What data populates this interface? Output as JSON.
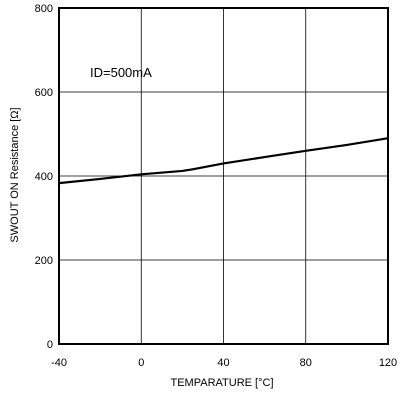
{
  "chart_data": {
    "type": "line",
    "annotation": "ID=500mA",
    "xlabel": "TEMPARATURE [°C]",
    "ylabel": "SWOUT ON Resistance [Ω]",
    "xlim": [
      -40,
      120
    ],
    "ylim": [
      0,
      800
    ],
    "x_ticks": [
      -40,
      0,
      40,
      80,
      120
    ],
    "y_ticks": [
      0,
      200,
      400,
      600,
      800
    ],
    "x_tick_labels": [
      "-40",
      "0",
      "40",
      "80",
      "120"
    ],
    "y_tick_labels": [
      "0",
      "200",
      "400",
      "600",
      "800"
    ],
    "grid": true,
    "series": [
      {
        "x": [
          -40,
          -20,
          0,
          20,
          25,
          40,
          60,
          80,
          100,
          120
        ],
        "y": [
          383,
          393,
          404,
          412,
          416,
          430,
          445,
          460,
          474,
          490
        ],
        "color": "#000000"
      }
    ]
  }
}
